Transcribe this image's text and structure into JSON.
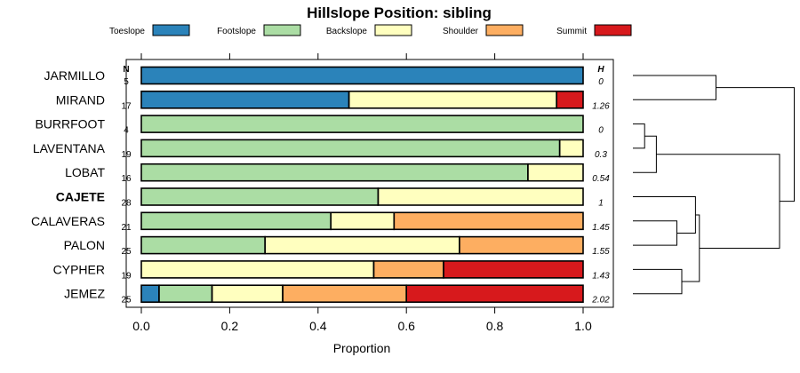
{
  "chart_data": {
    "type": "bar",
    "orientation": "horizontal",
    "stacked": true,
    "title": "Hillslope Position: sibling",
    "xlabel": "Proportion",
    "ylabel": "",
    "xlim": [
      0,
      1
    ],
    "x_ticks": [
      "0.0",
      "0.2",
      "0.4",
      "0.6",
      "0.8",
      "1.0"
    ],
    "x_tick_values": [
      0,
      0.2,
      0.4,
      0.6,
      0.8,
      1.0
    ],
    "n_header": "N",
    "h_header": "H",
    "highlight_category": "CAJETE",
    "legend_position": "top",
    "series": [
      {
        "name": "Toeslope",
        "color": "#2b83ba"
      },
      {
        "name": "Footslope",
        "color": "#abdda4"
      },
      {
        "name": "Backslope",
        "color": "#ffffbf"
      },
      {
        "name": "Shoulder",
        "color": "#fdae61"
      },
      {
        "name": "Summit",
        "color": "#d7191c"
      }
    ],
    "rows": [
      {
        "name": "JARMILLO",
        "n": "5",
        "h": "0",
        "values": [
          1.0,
          0,
          0,
          0,
          0
        ]
      },
      {
        "name": "MIRAND",
        "n": "17",
        "h": "1.26",
        "values": [
          0.47,
          0,
          0.47,
          0,
          0.06
        ]
      },
      {
        "name": "BURRFOOT",
        "n": "4",
        "h": "0",
        "values": [
          0,
          1.0,
          0,
          0,
          0
        ]
      },
      {
        "name": "LAVENTANA",
        "n": "19",
        "h": "0.3",
        "values": [
          0,
          0.947,
          0.053,
          0,
          0
        ]
      },
      {
        "name": "LOBAT",
        "n": "16",
        "h": "0.54",
        "values": [
          0,
          0.875,
          0.125,
          0,
          0
        ]
      },
      {
        "name": "CAJETE",
        "n": "28",
        "h": "1",
        "values": [
          0,
          0.536,
          0.464,
          0,
          0
        ]
      },
      {
        "name": "CALAVERAS",
        "n": "21",
        "h": "1.45",
        "values": [
          0,
          0.429,
          0.143,
          0.428,
          0
        ]
      },
      {
        "name": "PALON",
        "n": "25",
        "h": "1.55",
        "values": [
          0,
          0.28,
          0.44,
          0.28,
          0
        ]
      },
      {
        "name": "CYPHER",
        "n": "19",
        "h": "1.43",
        "values": [
          0,
          0,
          0.526,
          0.158,
          0.316
        ]
      },
      {
        "name": "JEMEZ",
        "n": "25",
        "h": "2.02",
        "values": [
          0.04,
          0.12,
          0.16,
          0.28,
          0.4
        ]
      }
    ],
    "dendrogram": {
      "merges": [
        {
          "left": "BURRFOOT",
          "right": "LAVENTANA",
          "height": 0.12
        },
        {
          "left": "BURRFOOT+LAVENTANA",
          "right": "LOBAT",
          "height": 0.24
        },
        {
          "left": "CALAVERAS",
          "right": "PALON",
          "height": 0.45
        },
        {
          "left": "CAJETE",
          "right": "CALAVERAS+PALON",
          "height": 0.64
        },
        {
          "left": "CYPHER",
          "right": "JEMEZ",
          "height": 0.5
        },
        {
          "left": "CAJETE+CALAVERAS+PALON",
          "right": "CYPHER+JEMEZ",
          "height": 0.68
        },
        {
          "left": "BURRFOOT+LAVENTANA+LOBAT",
          "right": "CAJETE+CALAVERAS+PALON+CYPHER+JEMEZ",
          "height": 1.5
        },
        {
          "left": "JARMILLO",
          "right": "MIRAND",
          "height": 0.85
        },
        {
          "left": "JARMILLO+MIRAND",
          "right": "REST",
          "height": 1.65
        }
      ]
    }
  }
}
